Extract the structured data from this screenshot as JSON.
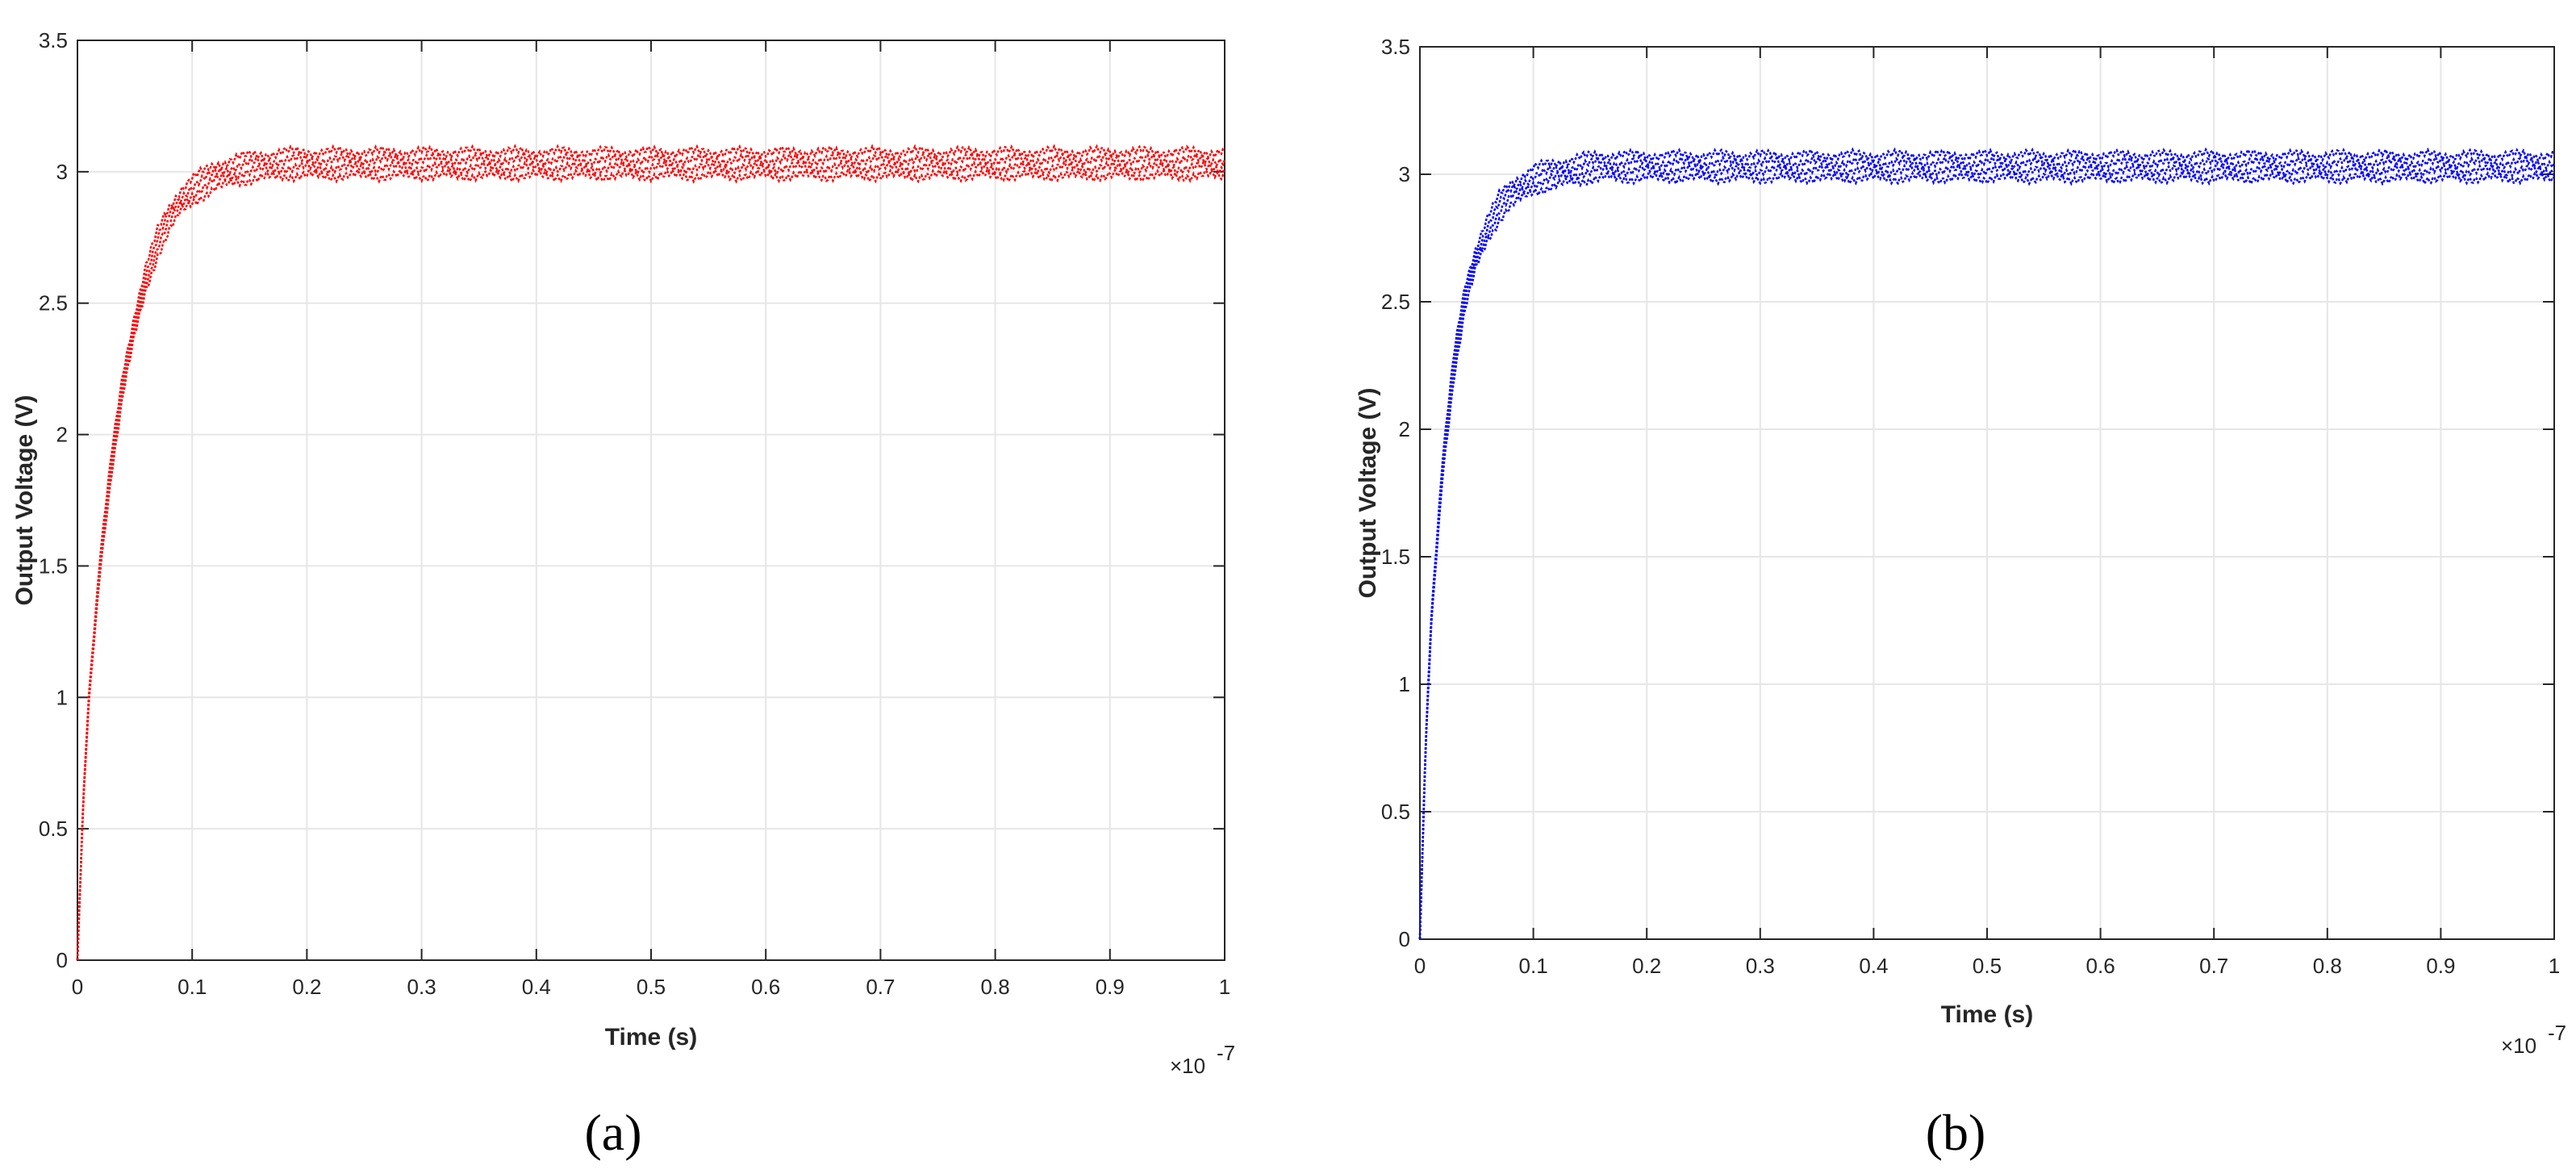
{
  "chart_data": [
    {
      "type": "line",
      "panel_label": "(a)",
      "xlabel": "Time (s)",
      "ylabel": "Output Voltage (V)",
      "x_multiplier": "×10",
      "x_multiplier_exp": "-7",
      "xlim": [
        0,
        1
      ],
      "ylim": [
        0,
        3.5
      ],
      "xticks": [
        0,
        0.1,
        0.2,
        0.3,
        0.4,
        0.5,
        0.6,
        0.7,
        0.8,
        0.9,
        1
      ],
      "xtick_labels": [
        "0",
        "0.1",
        "0.2",
        "0.3",
        "0.4",
        "0.5",
        "0.6",
        "0.7",
        "0.8",
        "0.9",
        "1"
      ],
      "yticks": [
        0,
        0.5,
        1,
        1.5,
        2,
        2.5,
        3,
        3.5
      ],
      "ytick_labels": [
        "0",
        "0.5",
        "1",
        "1.5",
        "2",
        "2.5",
        "3",
        "3.5"
      ],
      "grid": true,
      "color": "#ff0000",
      "series": [
        {
          "x": [
            0,
            0.005,
            0.01,
            0.02,
            0.03,
            0.04,
            0.05,
            0.06,
            0.07,
            0.08,
            0.09,
            0.1,
            0.12,
            0.14,
            0.16,
            0.18,
            0.2,
            0.25,
            0.3,
            0.35,
            0.4,
            0.45,
            0.5,
            0.55,
            0.6,
            0.65,
            0.7,
            0.75,
            0.8,
            0.85,
            0.9,
            0.95,
            1.0
          ],
          "y": [
            0.0,
            0.6,
            1.0,
            1.52,
            1.9,
            2.2,
            2.42,
            2.6,
            2.73,
            2.82,
            2.89,
            2.93,
            2.98,
            3.01,
            3.02,
            3.03,
            3.03,
            3.03,
            3.03,
            3.03,
            3.03,
            3.03,
            3.03,
            3.03,
            3.03,
            3.03,
            3.03,
            3.03,
            3.03,
            3.03,
            3.03,
            3.03,
            3.03
          ]
        }
      ]
    },
    {
      "type": "line",
      "panel_label": "(b)",
      "xlabel": "Time (s)",
      "ylabel": "Output Voltage (V)",
      "x_multiplier": "×10",
      "x_multiplier_exp": "-7",
      "xlim": [
        0,
        1
      ],
      "ylim": [
        0,
        3.5
      ],
      "xticks": [
        0,
        0.1,
        0.2,
        0.3,
        0.4,
        0.5,
        0.6,
        0.7,
        0.8,
        0.9,
        1
      ],
      "xtick_labels": [
        "0",
        "0.1",
        "0.2",
        "0.3",
        "0.4",
        "0.5",
        "0.6",
        "0.7",
        "0.8",
        "0.9",
        "1"
      ],
      "yticks": [
        0,
        0.5,
        1,
        1.5,
        2,
        2.5,
        3,
        3.5
      ],
      "ytick_labels": [
        "0",
        "0.5",
        "1",
        "1.5",
        "2",
        "2.5",
        "3",
        "3.5"
      ],
      "grid": true,
      "color": "#0000ff",
      "series": [
        {
          "x": [
            0,
            0.005,
            0.01,
            0.02,
            0.03,
            0.04,
            0.05,
            0.06,
            0.07,
            0.08,
            0.09,
            0.1,
            0.12,
            0.14,
            0.16,
            0.18,
            0.2,
            0.25,
            0.3,
            0.35,
            0.4,
            0.45,
            0.5,
            0.55,
            0.6,
            0.65,
            0.7,
            0.75,
            0.8,
            0.85,
            0.9,
            0.95,
            1.0
          ],
          "y": [
            0.0,
            0.75,
            1.25,
            1.85,
            2.25,
            2.52,
            2.68,
            2.79,
            2.87,
            2.92,
            2.95,
            2.98,
            3.0,
            3.02,
            3.03,
            3.03,
            3.03,
            3.03,
            3.03,
            3.03,
            3.03,
            3.03,
            3.03,
            3.03,
            3.03,
            3.03,
            3.03,
            3.03,
            3.03,
            3.03,
            3.03,
            3.03,
            3.03
          ]
        }
      ]
    }
  ]
}
